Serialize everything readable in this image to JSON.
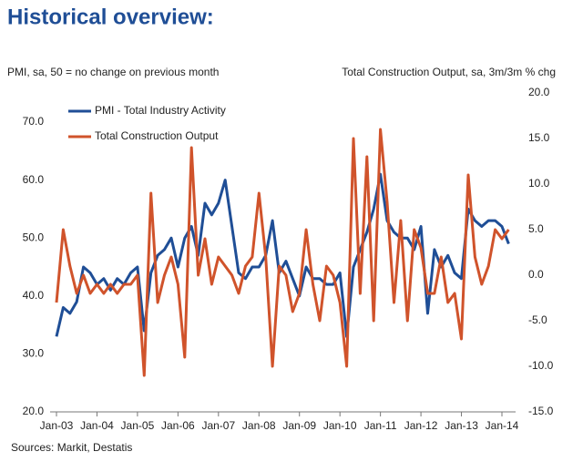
{
  "header": {
    "title": "Historical overview:"
  },
  "chart_data": {
    "type": "line",
    "left_axis_label": "PMI, sa, 50 = no change on previous month",
    "right_axis_label": "Total Construction Output, sa, 3m/3m % chg",
    "source": "Sources: Markit, Destatis",
    "categories": [
      "Jan-03",
      null,
      null,
      null,
      null,
      null,
      "Jan-04",
      null,
      null,
      null,
      null,
      null,
      "Jan-05",
      null,
      null,
      null,
      null,
      null,
      "Jan-06",
      null,
      null,
      null,
      null,
      null,
      "Jan-07",
      null,
      null,
      null,
      null,
      null,
      "Jan-08",
      null,
      null,
      null,
      null,
      null,
      "Jan-09",
      null,
      null,
      null,
      null,
      null,
      "Jan-10",
      null,
      null,
      null,
      null,
      null,
      "Jan-11",
      null,
      null,
      null,
      null,
      null,
      "Jan-12",
      null,
      null,
      null,
      null,
      null,
      "Jan-13",
      null,
      null,
      null,
      null,
      null,
      "Jan-14",
      null
    ],
    "series": [
      {
        "name": "PMI - Total Industry Activity",
        "color": "#1f4e96",
        "values": [
          33,
          38,
          37,
          39,
          45,
          44,
          42,
          43,
          41,
          43,
          42,
          44,
          45,
          34,
          44,
          47,
          48,
          50,
          45,
          50,
          52,
          47,
          56,
          54,
          56,
          60,
          52,
          44,
          43,
          45,
          45,
          47,
          53,
          44,
          46,
          43,
          40,
          45,
          43,
          43,
          42,
          42,
          44,
          33,
          45,
          48,
          51,
          55,
          61,
          53,
          51,
          50,
          50,
          48,
          52,
          37,
          48,
          45,
          47,
          44,
          43,
          55,
          53,
          52,
          53,
          53,
          52,
          49
        ]
      },
      {
        "name": "Total Construction Output",
        "color": "#d0532b",
        "axis": "y2",
        "values": [
          -3,
          5,
          1,
          -2,
          0,
          -2,
          -1,
          -2,
          -1,
          -2,
          -1,
          -1,
          0,
          -11,
          9,
          -3,
          0,
          2,
          -1,
          -9,
          14,
          0,
          4,
          -1,
          2,
          1,
          0,
          -2,
          1,
          2,
          9,
          2,
          -10,
          1,
          0,
          -4,
          -2,
          5,
          -1,
          -5,
          1,
          0,
          -3,
          -10,
          15,
          -2,
          13,
          -5,
          16,
          8,
          -3,
          6,
          -5,
          5,
          3,
          -2,
          -2,
          2,
          -3,
          -2,
          -7,
          11,
          2,
          -1,
          1,
          5,
          4,
          5
        ]
      }
    ],
    "ylim": [
      20,
      70
    ],
    "yticks": [
      {
        "value": 20,
        "label": "20.0"
      },
      {
        "value": 30,
        "label": "30.0"
      },
      {
        "value": 40,
        "label": "40.0"
      },
      {
        "value": 50,
        "label": "50.0"
      },
      {
        "value": 60,
        "label": "60.0"
      },
      {
        "value": 70,
        "label": "70.0"
      }
    ],
    "y2lim": [
      -15,
      20
    ],
    "y2ticks": [
      {
        "value": -15,
        "label": "-15.0"
      },
      {
        "value": -10,
        "label": "-10.0"
      },
      {
        "value": -5,
        "label": "-5.0"
      },
      {
        "value": 0,
        "label": "0.0"
      },
      {
        "value": 5,
        "label": "5.0"
      },
      {
        "value": 10,
        "label": "10.0"
      },
      {
        "value": 15,
        "label": "15.0"
      },
      {
        "value": 20,
        "label": "20.0"
      }
    ],
    "legend": "upper left"
  }
}
